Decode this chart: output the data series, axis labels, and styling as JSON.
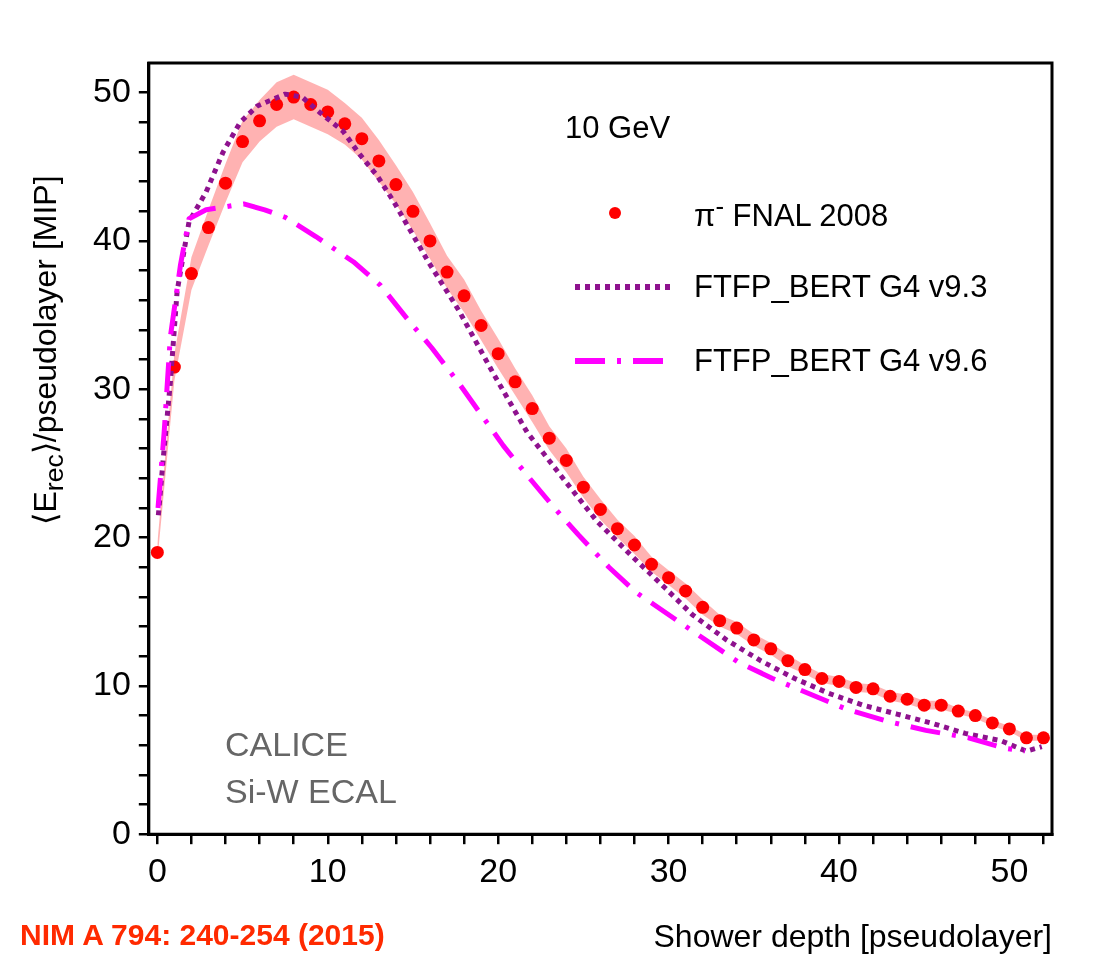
{
  "chart_data": {
    "type": "line",
    "xlabel": "Shower depth [pseudolayer]",
    "ylabel": "⟨E$_{rec}$⟩/pseudolayer [MIP]",
    "legend_title": "10 GeV",
    "legend": "top right",
    "annotations": [
      "CALICE",
      "Si-W ECAL",
      "NIM A 794: 240-254 (2015)"
    ],
    "xlim": [
      -0.5,
      52.5
    ],
    "ylim": [
      0,
      52
    ],
    "xticks": [
      0,
      {
        "value": 2,
        "label": null
      },
      {
        "value": 4,
        "label": null
      },
      {
        "value": 6,
        "label": null
      },
      {
        "value": 8,
        "label": null
      },
      10,
      {
        "value": 12,
        "label": null
      },
      {
        "value": 14,
        "label": null
      },
      {
        "value": 16,
        "label": null
      },
      {
        "value": 18,
        "label": null
      },
      20,
      {
        "value": 22,
        "label": null
      },
      {
        "value": 24,
        "label": null
      },
      {
        "value": 26,
        "label": null
      },
      {
        "value": 28,
        "label": null
      },
      30,
      {
        "value": 32,
        "label": null
      },
      {
        "value": 34,
        "label": null
      },
      {
        "value": 36,
        "label": null
      },
      {
        "value": 38,
        "label": null
      },
      40,
      {
        "value": 42,
        "label": null
      },
      {
        "value": 44,
        "label": null
      },
      {
        "value": 46,
        "label": null
      },
      {
        "value": 48,
        "label": null
      },
      50,
      {
        "value": 52,
        "label": null
      }
    ],
    "yticks": [
      0,
      {
        "value": 2,
        "label": null
      },
      {
        "value": 4,
        "label": null
      },
      {
        "value": 6,
        "label": null
      },
      {
        "value": 8,
        "label": null
      },
      10,
      {
        "value": 12,
        "label": null
      },
      {
        "value": 14,
        "label": null
      },
      {
        "value": 16,
        "label": null
      },
      {
        "value": 18,
        "label": null
      },
      20,
      {
        "value": 22,
        "label": null
      },
      {
        "value": 24,
        "label": null
      },
      {
        "value": 26,
        "label": null
      },
      {
        "value": 28,
        "label": null
      },
      30,
      {
        "value": 32,
        "label": null
      },
      {
        "value": 34,
        "label": null
      },
      {
        "value": 36,
        "label": null
      },
      {
        "value": 38,
        "label": null
      },
      40,
      {
        "value": 42,
        "label": null
      },
      {
        "value": 44,
        "label": null
      },
      {
        "value": 46,
        "label": null
      },
      {
        "value": 48,
        "label": null
      },
      50
    ],
    "series": [
      {
        "name": "π$^{-}$ FNAL 2008",
        "type": "scatter",
        "marker": "circle",
        "color": "#ff0000",
        "x": [
          0,
          1,
          2,
          3,
          4,
          5,
          6,
          7,
          8,
          9,
          10,
          11,
          12,
          13,
          14,
          15,
          16,
          17,
          18,
          19,
          20,
          21,
          22,
          23,
          24,
          25,
          26,
          27,
          28,
          29,
          30,
          31,
          32,
          33,
          34,
          35,
          36,
          37,
          38,
          39,
          40,
          41,
          42,
          43,
          44,
          45,
          46,
          47,
          48,
          49,
          50,
          51,
          52
        ],
        "values": [
          19.0,
          31.5,
          37.8,
          40.9,
          43.9,
          46.7,
          48.1,
          49.2,
          49.7,
          49.2,
          48.7,
          47.9,
          46.9,
          45.4,
          43.8,
          42.0,
          40.0,
          37.9,
          36.3,
          34.3,
          32.4,
          30.5,
          28.7,
          26.7,
          25.2,
          23.4,
          21.9,
          20.6,
          19.5,
          18.2,
          17.3,
          16.4,
          15.3,
          14.4,
          13.9,
          13.1,
          12.5,
          11.7,
          11.1,
          10.5,
          10.3,
          9.9,
          9.8,
          9.3,
          9.1,
          8.7,
          8.7,
          8.3,
          8.0,
          7.5,
          7.1,
          6.5,
          6.5
        ],
        "lower": [
          18.4,
          30.6,
          36.7,
          39.7,
          42.6,
          45.3,
          46.7,
          47.7,
          48.2,
          47.7,
          47.2,
          46.5,
          45.5,
          44.0,
          42.5,
          40.7,
          38.8,
          36.8,
          35.2,
          33.3,
          31.4,
          29.6,
          27.8,
          25.9,
          24.4,
          22.7,
          21.2,
          20.0,
          18.9,
          17.7,
          16.8,
          15.9,
          14.8,
          14.0,
          13.5,
          12.7,
          12.1,
          11.3,
          10.8,
          10.2,
          10.0,
          9.6,
          9.5,
          9.0,
          8.8,
          8.4,
          8.4,
          8.1,
          7.8,
          7.3,
          6.9,
          6.3,
          6.3
        ],
        "upper": [
          19.6,
          32.4,
          38.9,
          42.1,
          45.2,
          48.1,
          49.5,
          50.7,
          51.2,
          50.7,
          50.2,
          49.3,
          48.3,
          46.8,
          45.1,
          43.3,
          41.2,
          39.0,
          37.4,
          35.3,
          33.4,
          31.4,
          29.6,
          27.5,
          26.0,
          24.1,
          22.6,
          21.2,
          20.1,
          18.7,
          17.8,
          16.9,
          15.8,
          14.8,
          14.3,
          13.5,
          12.9,
          12.1,
          11.4,
          10.8,
          10.6,
          10.2,
          10.1,
          9.6,
          9.4,
          9.0,
          9.0,
          8.5,
          8.2,
          7.7,
          7.3,
          6.7,
          6.7
        ]
      },
      {
        "name": "FTFP_BERT G4 v9.3",
        "type": "line",
        "line_style": "dotted",
        "color": "#8e128e",
        "x": [
          0.06,
          0.36,
          0.76,
          1.16,
          1.86,
          2.86,
          3.86,
          4.86,
          5.86,
          7.5,
          8.5,
          9.5,
          10.9,
          11.9,
          12.9,
          13.9,
          14.9,
          15.9,
          17.7,
          19.7,
          21.7,
          23.8,
          25.8,
          27.8,
          29.8,
          31.4,
          33.4,
          35.4,
          37.4,
          39.4,
          41.4,
          43.4,
          45.4,
          47.4,
          49.5,
          51.0,
          51.9
        ],
        "values": [
          21.5,
          25.5,
          30.4,
          36.6,
          41.3,
          43.3,
          46.0,
          48.0,
          49.1,
          49.9,
          49.7,
          48.7,
          47.4,
          45.8,
          44.4,
          42.6,
          40.6,
          38.6,
          35.3,
          31.1,
          27.1,
          24.0,
          21.1,
          18.8,
          16.6,
          14.8,
          13.1,
          11.7,
          10.5,
          9.5,
          8.7,
          8.1,
          7.5,
          6.8,
          6.3,
          5.6,
          5.9
        ]
      },
      {
        "name": "FTFP_BERT G4 v9.6",
        "type": "line",
        "line_style": "dashed",
        "color": "#ff00ff",
        "x": [
          0.04,
          0.4,
          0.76,
          1.36,
          1.86,
          2.86,
          5.07,
          6.3,
          7.5,
          9.3,
          11.5,
          13.1,
          14.7,
          16.1,
          17.7,
          20.3,
          21.7,
          23.3,
          24.7,
          26.5,
          28.1,
          31.4,
          34.1,
          36.1,
          38.4,
          40.5,
          42.9,
          45.1,
          47.6,
          49.7,
          50.9
        ],
        "values": [
          22.0,
          27.1,
          33.5,
          38.4,
          41.5,
          42.1,
          42.5,
          42.1,
          41.6,
          40.3,
          38.6,
          37.0,
          34.7,
          32.8,
          30.4,
          26.2,
          24.2,
          22.0,
          20.2,
          18.0,
          16.3,
          13.7,
          11.6,
          10.5,
          9.4,
          8.4,
          7.6,
          7.0,
          6.5,
          5.8,
          5.6
        ]
      }
    ]
  }
}
